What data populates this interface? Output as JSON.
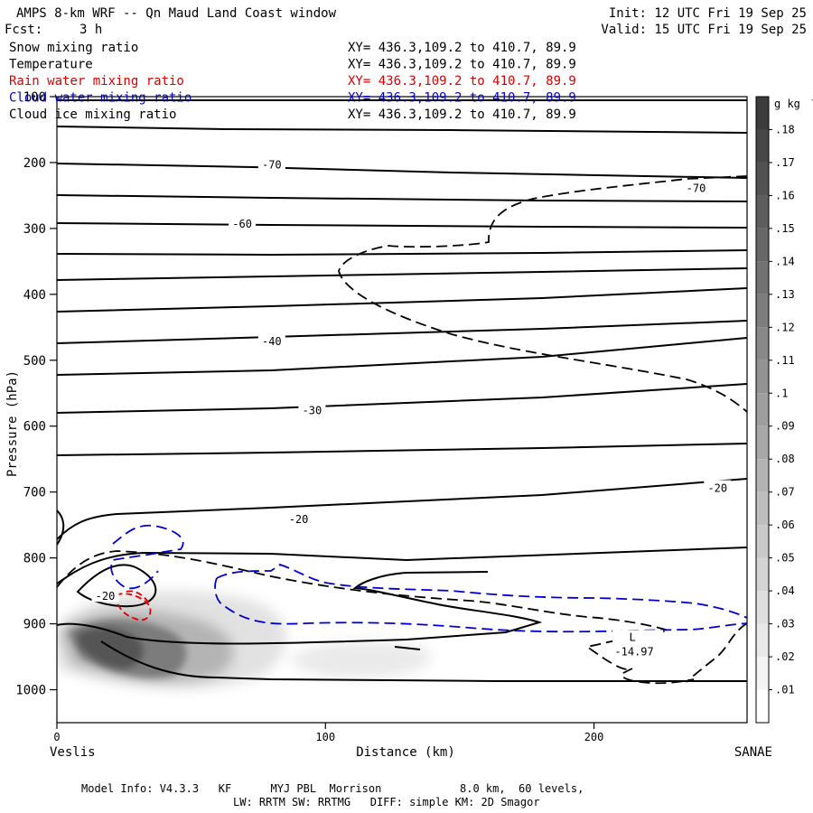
{
  "header": {
    "title": "AMPS 8-km WRF -- Qn Maud Land Coast window",
    "fcst_label": "Fcst:",
    "fcst_value": "3 h",
    "init": "Init: 12 UTC Fri 19 Sep 25",
    "valid": "Valid: 15 UTC Fri 19 Sep 25"
  },
  "fields": [
    {
      "name": "Snow mixing ratio",
      "xy": "XY= 436.3,109.2 to 410.7, 89.9",
      "color": "#000000"
    },
    {
      "name": "Temperature",
      "xy": "XY= 436.3,109.2 to 410.7, 89.9",
      "color": "#000000"
    },
    {
      "name": "Rain water mixing ratio",
      "xy": "XY= 436.3,109.2 to 410.7, 89.9",
      "color": "#dd0000"
    },
    {
      "name": "Cloud water mixing ratio",
      "xy": "XY= 436.3,109.2 to 410.7, 89.9",
      "color": "#0000cc"
    },
    {
      "name": "Cloud ice mixing ratio",
      "xy": "XY= 436.3,109.2 to 410.7, 89.9",
      "color": "#000000"
    }
  ],
  "footer": {
    "line1": "Model Info: V4.3.3   KF      MYJ PBL  Morrison            8.0 km,  60 levels,",
    "line2": "LW: RRTM SW: RRTMG   DIFF: simple KM: 2D Smagor"
  },
  "chart_data": {
    "type": "heatmap",
    "title": "AMPS 8-km WRF -- Qn Maud Land Coast window",
    "xlabel": "Distance (km)",
    "ylabel": "Pressure (hPa)",
    "xlim": [
      0,
      257
    ],
    "ylim": [
      1050,
      100
    ],
    "x_ticks": [
      0,
      100,
      200
    ],
    "y_ticks": [
      100,
      200,
      300,
      400,
      500,
      600,
      700,
      800,
      900,
      1000
    ],
    "x_endpoints": {
      "left": "Veslis",
      "right": "SANAE"
    },
    "colorbar": {
      "unit": "g kg",
      "unit_exp": "-1",
      "levels": [
        0.01,
        0.02,
        0.03,
        0.04,
        0.05,
        0.06,
        0.07,
        0.08,
        0.09,
        0.1,
        0.11,
        0.12,
        0.13,
        0.14,
        0.15,
        0.16,
        0.17,
        0.18
      ],
      "labels": [
        ".01",
        ".02",
        ".03",
        ".04",
        ".05",
        ".06",
        ".07",
        ".08",
        ".09",
        ".1",
        ".11",
        ".12",
        ".13",
        ".14",
        ".15",
        ".16",
        ".17",
        ".18"
      ]
    },
    "temperature_contours": [
      {
        "label": "-70",
        "pts": [
          [
            0,
            200
          ],
          [
            30,
            203
          ],
          [
            80,
            210
          ],
          [
            150,
            215
          ],
          [
            210,
            219
          ],
          [
            257,
            222
          ]
        ]
      },
      {
        "label": "-60",
        "pts": [
          [
            0,
            292
          ],
          [
            60,
            292
          ],
          [
            150,
            290
          ],
          [
            257,
            285
          ]
        ]
      },
      {
        "label": "-40",
        "pts": [
          [
            0,
            473
          ],
          [
            80,
            468
          ],
          [
            150,
            460
          ],
          [
            257,
            450
          ]
        ]
      },
      {
        "label": "-30",
        "pts": [
          [
            0,
            578
          ],
          [
            80,
            575
          ],
          [
            160,
            563
          ],
          [
            257,
            538
          ]
        ]
      },
      {
        "label": "-20",
        "pts": [
          [
            0,
            788
          ],
          [
            30,
            745
          ],
          [
            80,
            740
          ],
          [
            150,
            730
          ],
          [
            257,
            693
          ]
        ]
      }
    ],
    "temperature_labels": [
      {
        "text": "-70",
        "x": 80,
        "p": 202
      },
      {
        "text": "-70",
        "x": 238,
        "p": 238
      },
      {
        "text": "-60",
        "x": 69,
        "p": 292
      },
      {
        "text": "-40",
        "x": 80,
        "p": 470
      },
      {
        "text": "-30",
        "x": 95,
        "p": 575
      },
      {
        "text": "-20",
        "x": 90,
        "p": 740
      },
      {
        "text": "-20",
        "x": 246,
        "p": 693
      },
      {
        "text": "-20",
        "x": 18,
        "p": 857
      }
    ],
    "low_marker": {
      "symbol": "L",
      "value": "-14.97",
      "x": 217,
      "p": 945
    },
    "snow_max": {
      "x": 30,
      "p": 920,
      "value": 0.15
    }
  }
}
